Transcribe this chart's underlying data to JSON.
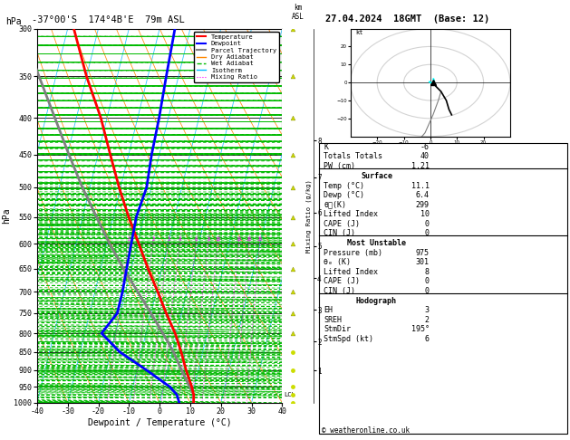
{
  "title_left": "-37°00'S  174°4B'E  79m ASL",
  "title_right": "27.04.2024  18GMT  (Base: 12)",
  "copyright": "© weatheronline.co.uk",
  "pressure_levels": [
    300,
    350,
    400,
    450,
    500,
    550,
    600,
    650,
    700,
    750,
    800,
    850,
    900,
    950,
    1000
  ],
  "km_ticks": [
    1,
    2,
    3,
    4,
    5,
    6,
    7,
    8
  ],
  "km_pressures": [
    902,
    821,
    742,
    670,
    604,
    542,
    484,
    430
  ],
  "lcl_pressure": 975,
  "skew": 30,
  "colors": {
    "temperature": "#ff0000",
    "dewpoint": "#0000ff",
    "parcel": "#808080",
    "dry_adiabat": "#ff8800",
    "wet_adiabat": "#00bb00",
    "isotherm": "#00bbff",
    "mixing_ratio": "#ff00ff",
    "wind_marker": "#ccdd00",
    "background": "#ffffff",
    "grid": "#000000"
  },
  "temperature_profile": {
    "pressure": [
      1000,
      975,
      950,
      900,
      850,
      800,
      750,
      700,
      650,
      600,
      550,
      500,
      450,
      400,
      350,
      300
    ],
    "temp": [
      11.1,
      10.5,
      9.2,
      6.0,
      3.0,
      -0.5,
      -5.0,
      -9.5,
      -14.5,
      -19.5,
      -25.0,
      -30.5,
      -36.0,
      -42.0,
      -50.0,
      -58.0
    ]
  },
  "dewpoint_profile": {
    "pressure": [
      1000,
      975,
      950,
      900,
      850,
      800,
      750,
      700,
      650,
      600,
      550,
      500,
      450,
      400,
      350,
      300
    ],
    "temp": [
      6.4,
      5.0,
      2.0,
      -7.0,
      -17.0,
      -24.5,
      -21.0,
      -21.0,
      -21.5,
      -22.0,
      -22.5,
      -21.5,
      -22.5,
      -23.0,
      -24.0,
      -25.0
    ]
  },
  "parcel_profile": {
    "pressure": [
      975,
      950,
      900,
      850,
      800,
      750,
      700,
      650,
      600,
      550,
      500,
      450,
      400,
      350,
      300
    ],
    "temp": [
      10.5,
      8.5,
      4.5,
      0.5,
      -4.5,
      -10.0,
      -16.0,
      -22.5,
      -29.0,
      -35.5,
      -42.5,
      -49.5,
      -57.0,
      -65.5,
      -75.0
    ]
  },
  "wind_levels": [
    1000,
    975,
    950,
    900,
    850,
    800,
    750,
    700,
    650,
    600,
    550,
    500,
    450,
    400,
    350,
    300
  ],
  "stats": {
    "K": "-6",
    "Totals Totals": "40",
    "PW (cm)": "1.21",
    "Surface_rows": [
      [
        "Temp (°C)",
        "11.1"
      ],
      [
        "Dewp (°C)",
        "6.4"
      ],
      [
        "θᴇ(K)",
        "299"
      ],
      [
        "Lifted Index",
        "10"
      ],
      [
        "CAPE (J)",
        "0"
      ],
      [
        "CIN (J)",
        "0"
      ]
    ],
    "MostUnstable_rows": [
      [
        "Pressure (mb)",
        "975"
      ],
      [
        "θₑ (K)",
        "301"
      ],
      [
        "Lifted Index",
        "8"
      ],
      [
        "CAPE (J)",
        "0"
      ],
      [
        "CIN (J)",
        "0"
      ]
    ],
    "Hodograph_rows": [
      [
        "EH",
        "3"
      ],
      [
        "SREH",
        "2"
      ],
      [
        "StmDir",
        "195°"
      ],
      [
        "StmSpd (kt)",
        "6"
      ]
    ]
  },
  "hodo_u": [
    1,
    2,
    4,
    6,
    7,
    8
  ],
  "hodo_v": [
    0,
    -2,
    -5,
    -10,
    -15,
    -18
  ],
  "hodo_u2": [
    4,
    3,
    1,
    -2,
    -6
  ],
  "hodo_v2": [
    -5,
    -10,
    -18,
    -28,
    -35
  ]
}
